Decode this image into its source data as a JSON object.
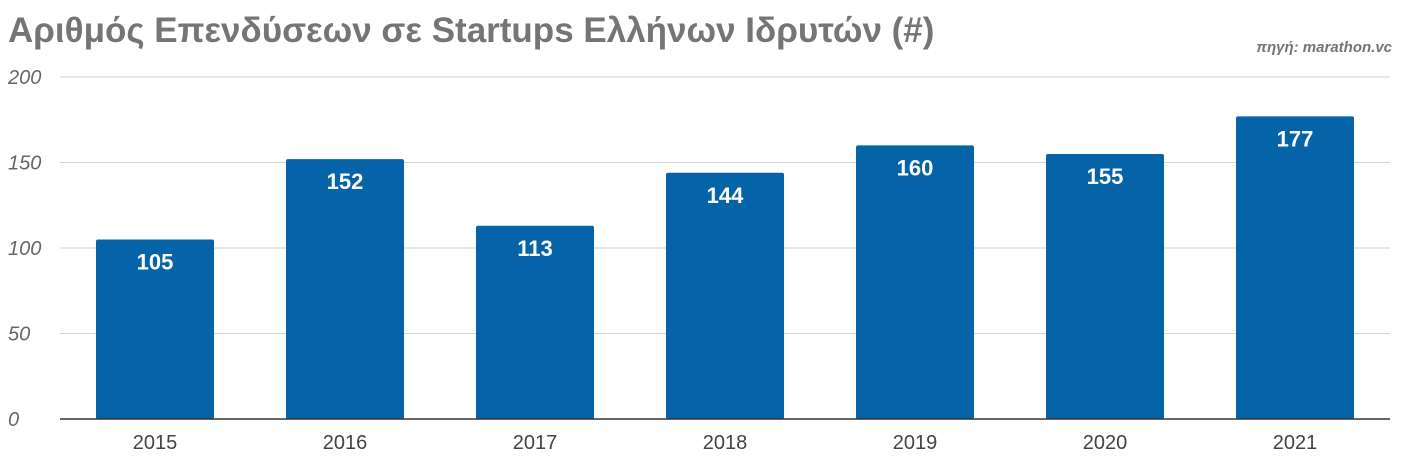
{
  "chart_data": {
    "type": "bar",
    "title": "Αριθμός Επενδύσεων σε Startups Ελλήνων Ιδρυτών (#)",
    "source": "πηγή: marathon.vc",
    "categories": [
      "2015",
      "2016",
      "2017",
      "2018",
      "2019",
      "2020",
      "2021"
    ],
    "values": [
      105,
      152,
      113,
      144,
      160,
      155,
      177
    ],
    "data_labels": [
      "105",
      "152",
      "113",
      "144",
      "160",
      "155",
      "177"
    ],
    "ylim": [
      0,
      200
    ],
    "yticks": [
      0,
      50,
      100,
      150,
      200
    ],
    "ytick_labels": [
      "0",
      "50",
      "100",
      "150",
      "200"
    ],
    "xlabel": "",
    "ylabel": "",
    "grid": true,
    "legend": "none",
    "bar_color": "#0563a8"
  }
}
